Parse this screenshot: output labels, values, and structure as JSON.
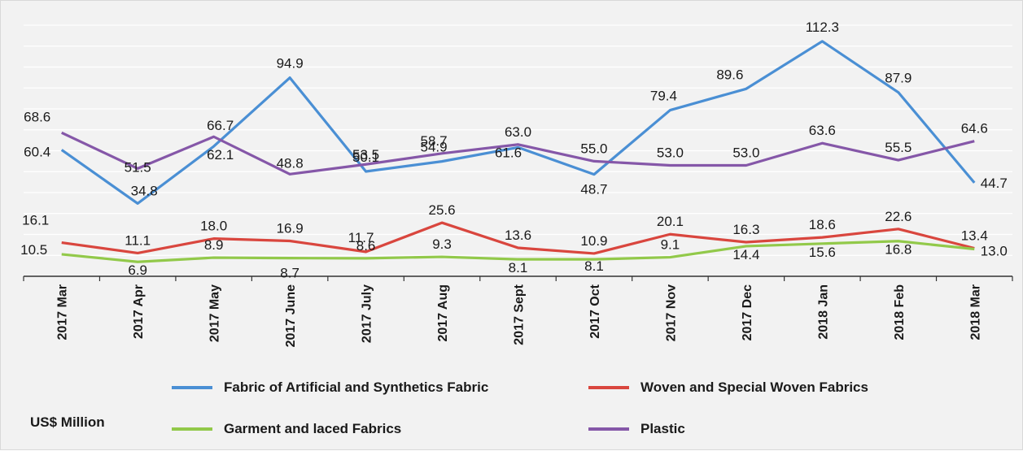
{
  "chart_data": {
    "type": "line",
    "unit_label": "US$ Million",
    "categories": [
      "2017 Mar",
      "2017 Apr",
      "2017 May",
      "2017 June",
      "2017 July",
      "2017 Aug",
      "2017 Sept",
      "2017 Oct",
      "2017 Nov",
      "2017 Dec",
      "2018 Jan",
      "2018 Feb",
      "2018 Mar"
    ],
    "ylim": [
      0,
      120
    ],
    "grid": true,
    "legend_position": "bottom",
    "series": [
      {
        "name": "Fabric of  Artificial and Synthetics Fabric",
        "color": "#4a8fd4",
        "values": [
          60.4,
          34.8,
          62.1,
          94.9,
          50.1,
          54.9,
          61.6,
          48.7,
          79.4,
          89.6,
          112.3,
          87.9,
          44.7
        ]
      },
      {
        "name": "Woven and Special Woven Fabrics",
        "color": "#d9463e",
        "values": [
          16.1,
          11.1,
          18.0,
          16.9,
          11.7,
          25.6,
          13.6,
          10.9,
          20.1,
          16.3,
          18.6,
          22.6,
          13.4
        ]
      },
      {
        "name": "Garment and laced Fabrics",
        "color": "#92c94a",
        "values": [
          10.5,
          6.9,
          8.9,
          8.7,
          8.6,
          9.3,
          8.1,
          8.1,
          9.1,
          14.4,
          15.6,
          16.8,
          13.0
        ]
      },
      {
        "name": "Plastic",
        "color": "#8557a8",
        "values": [
          68.6,
          51.5,
          66.7,
          48.8,
          53.5,
          58.7,
          63.0,
          55.0,
          53.0,
          53.0,
          63.6,
          55.5,
          64.6
        ]
      }
    ]
  }
}
